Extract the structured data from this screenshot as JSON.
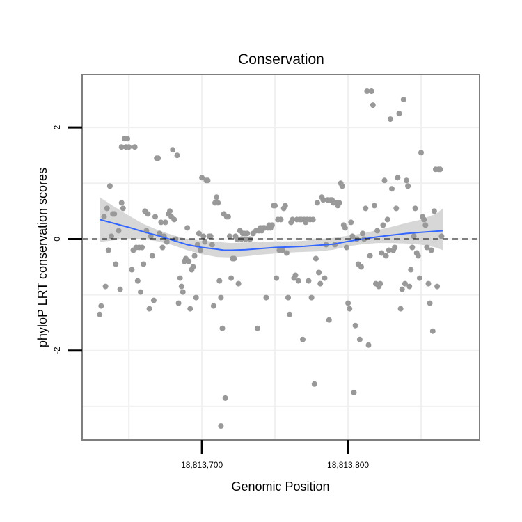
{
  "chart_data": {
    "type": "scatter",
    "title": "Conservation",
    "xlabel": "Genomic Position",
    "ylabel": "phyloP LRT conservation scores",
    "x_ticks": [
      {
        "value": 18813700,
        "label": "18,813,700"
      },
      {
        "value": 18813800,
        "label": "18,813,800"
      }
    ],
    "y_ticks": [
      {
        "value": -2,
        "label": "-2"
      },
      {
        "value": 0,
        "label": "0"
      },
      {
        "value": 2,
        "label": "2"
      }
    ],
    "xlim": [
      18813618,
      18813890
    ],
    "ylim": [
      -3.6,
      2.95
    ],
    "grid": true,
    "reference_line": {
      "y": 0,
      "style": "dashed",
      "color": "#000000"
    },
    "colors": {
      "points": "#999999",
      "smooth_line": "#3366FF",
      "ribbon": "#D3D3D3",
      "panel_border": "#7F7F7F",
      "grid": "#F0F0F0"
    },
    "points": [
      [
        18813630,
        -1.35
      ],
      [
        18813631,
        -1.2
      ],
      [
        18813633,
        0.4
      ],
      [
        18813634,
        -0.85
      ],
      [
        18813635,
        0.55
      ],
      [
        18813636,
        -0.2
      ],
      [
        18813637,
        0.95
      ],
      [
        18813638,
        0.05
      ],
      [
        18813639,
        0.45
      ],
      [
        18813640,
        0.45
      ],
      [
        18813641,
        -0.45
      ],
      [
        18813643,
        0.15
      ],
      [
        18813644,
        -0.9
      ],
      [
        18813645,
        0.65
      ],
      [
        18813645,
        1.65
      ],
      [
        18813646,
        0.55
      ],
      [
        18813647,
        1.8
      ],
      [
        18813648,
        1.65
      ],
      [
        18813649,
        1.8
      ],
      [
        18813650,
        1.65
      ],
      [
        18813652,
        -0.55
      ],
      [
        18813653,
        -0.2
      ],
      [
        18813654,
        1.65
      ],
      [
        18813655,
        -0.15
      ],
      [
        18813656,
        -0.75
      ],
      [
        18813657,
        -0.15
      ],
      [
        18813658,
        -0.95
      ],
      [
        18813659,
        -0.15
      ],
      [
        18813660,
        -0.45
      ],
      [
        18813661,
        0.5
      ],
      [
        18813662,
        0.15
      ],
      [
        18813663,
        0.45
      ],
      [
        18813664,
        -1.25
      ],
      [
        18813665,
        0.05
      ],
      [
        18813666,
        -0.3
      ],
      [
        18813667,
        -1.1
      ],
      [
        18813668,
        0.4
      ],
      [
        18813669,
        1.45
      ],
      [
        18813670,
        1.45
      ],
      [
        18813671,
        0.1
      ],
      [
        18813672,
        0.3
      ],
      [
        18813673,
        -0.15
      ],
      [
        18813674,
        0.05
      ],
      [
        18813675,
        0.3
      ],
      [
        18813676,
        -0.05
      ],
      [
        18813677,
        0.45
      ],
      [
        18813678,
        0.5
      ],
      [
        18813679,
        0.4
      ],
      [
        18813680,
        1.6
      ],
      [
        18813681,
        0.35
      ],
      [
        18813682,
        0.0
      ],
      [
        18813683,
        1.5
      ],
      [
        18813684,
        -1.15
      ],
      [
        18813685,
        -0.7
      ],
      [
        18813686,
        -0.85
      ],
      [
        18813687,
        -0.95
      ],
      [
        18813688,
        -0.4
      ],
      [
        18813689,
        -0.35
      ],
      [
        18813690,
        0.2
      ],
      [
        18813691,
        -0.4
      ],
      [
        18813692,
        -1.25
      ],
      [
        18813693,
        -0.55
      ],
      [
        18813694,
        -0.5
      ],
      [
        18813695,
        -0.3
      ],
      [
        18813696,
        -1.05
      ],
      [
        18813697,
        -0.1
      ],
      [
        18813698,
        0.1
      ],
      [
        18813699,
        -0.2
      ],
      [
        18813700,
        1.1
      ],
      [
        18813701,
        0.05
      ],
      [
        18813702,
        -0.05
      ],
      [
        18813703,
        1.05
      ],
      [
        18813704,
        1.05
      ],
      [
        18813705,
        0.05
      ],
      [
        18813706,
        0.05
      ],
      [
        18813707,
        -0.1
      ],
      [
        18813708,
        -1.2
      ],
      [
        18813709,
        0.65
      ],
      [
        18813710,
        0.75
      ],
      [
        18813711,
        0.65
      ],
      [
        18813712,
        -0.75
      ],
      [
        18813713,
        -1.05
      ],
      [
        18813714,
        -1.6
      ],
      [
        18813715,
        0.45
      ],
      [
        18813716,
        -2.85
      ],
      [
        18813717,
        0.4
      ],
      [
        18813718,
        0.4
      ],
      [
        18813719,
        0.05
      ],
      [
        18813720,
        -0.7
      ],
      [
        18813721,
        -0.35
      ],
      [
        18813722,
        -0.35
      ],
      [
        18813723,
        0.05
      ],
      [
        18813724,
        0.0
      ],
      [
        18813725,
        -0.8
      ],
      [
        18813726,
        0.15
      ],
      [
        18813727,
        0.0
      ],
      [
        18813728,
        0.1
      ],
      [
        18813729,
        0.1
      ],
      [
        18813713,
        -3.35
      ],
      [
        18813730,
        0.0
      ],
      [
        18813731,
        0.1
      ],
      [
        18813733,
        0.0
      ],
      [
        18813735,
        0.1
      ],
      [
        18813737,
        0.15
      ],
      [
        18813738,
        -1.6
      ],
      [
        18813739,
        0.15
      ],
      [
        18813740,
        0.2
      ],
      [
        18813741,
        0.15
      ],
      [
        18813742,
        0.2
      ],
      [
        18813743,
        0.2
      ],
      [
        18813744,
        -1.05
      ],
      [
        18813745,
        0.2
      ],
      [
        18813746,
        0.25
      ],
      [
        18813747,
        0.2
      ],
      [
        18813748,
        0.25
      ],
      [
        18813749,
        0.6
      ],
      [
        18813750,
        0.6
      ],
      [
        18813751,
        -0.7
      ],
      [
        18813752,
        0.35
      ],
      [
        18813753,
        -0.2
      ],
      [
        18813754,
        0.35
      ],
      [
        18813755,
        -0.2
      ],
      [
        18813756,
        0.55
      ],
      [
        18813757,
        0.6
      ],
      [
        18813758,
        -0.25
      ],
      [
        18813759,
        -1.05
      ],
      [
        18813760,
        -1.35
      ],
      [
        18813761,
        0.3
      ],
      [
        18813762,
        0.35
      ],
      [
        18813763,
        -0.7
      ],
      [
        18813764,
        -0.65
      ],
      [
        18813765,
        0.35
      ],
      [
        18813766,
        -0.75
      ],
      [
        18813767,
        0.35
      ],
      [
        18813768,
        0.35
      ],
      [
        18813769,
        -1.8
      ],
      [
        18813770,
        0.35
      ],
      [
        18813771,
        0.3
      ],
      [
        18813772,
        0.35
      ],
      [
        18813773,
        -0.75
      ],
      [
        18813774,
        0.35
      ],
      [
        18813775,
        -1.05
      ],
      [
        18813776,
        0.35
      ],
      [
        18813777,
        -2.6
      ],
      [
        18813778,
        -0.35
      ],
      [
        18813779,
        0.65
      ],
      [
        18813780,
        -0.6
      ],
      [
        18813781,
        -0.8
      ],
      [
        18813782,
        0.75
      ],
      [
        18813783,
        0.7
      ],
      [
        18813784,
        -0.7
      ],
      [
        18813785,
        -0.1
      ],
      [
        18813786,
        0.7
      ],
      [
        18813787,
        -1.45
      ],
      [
        18813788,
        0.7
      ],
      [
        18813789,
        0.7
      ],
      [
        18813790,
        0.65
      ],
      [
        18813791,
        -0.1
      ],
      [
        18813792,
        0.65
      ],
      [
        18813793,
        0.6
      ],
      [
        18813794,
        0.65
      ],
      [
        18813795,
        1.0
      ],
      [
        18813796,
        0.95
      ],
      [
        18813797,
        0.25
      ],
      [
        18813798,
        0.2
      ],
      [
        18813799,
        -0.15
      ],
      [
        18813800,
        -1.15
      ],
      [
        18813801,
        -1.25
      ],
      [
        18813802,
        0.3
      ],
      [
        18813803,
        0.05
      ],
      [
        18813804,
        -2.75
      ],
      [
        18813805,
        -1.55
      ],
      [
        18813806,
        0.0
      ],
      [
        18813807,
        -0.45
      ],
      [
        18813808,
        -1.8
      ],
      [
        18813809,
        -0.5
      ],
      [
        18813810,
        0.1
      ],
      [
        18813811,
        0.0
      ],
      [
        18813812,
        0.55
      ],
      [
        18813813,
        2.65
      ],
      [
        18813814,
        -1.9
      ],
      [
        18813815,
        -0.3
      ],
      [
        18813816,
        2.65
      ],
      [
        18813817,
        2.4
      ],
      [
        18813818,
        0.6
      ],
      [
        18813819,
        -0.8
      ],
      [
        18813820,
        0.15
      ],
      [
        18813821,
        -0.85
      ],
      [
        18813822,
        -0.8
      ],
      [
        18813823,
        -0.25
      ],
      [
        18813824,
        0.25
      ],
      [
        18813825,
        1.05
      ],
      [
        18813826,
        -0.3
      ],
      [
        18813827,
        0.35
      ],
      [
        18813828,
        -0.2
      ],
      [
        18813829,
        2.15
      ],
      [
        18813830,
        0.9
      ],
      [
        18813831,
        -0.2
      ],
      [
        18813832,
        -0.15
      ],
      [
        18813833,
        0.55
      ],
      [
        18813834,
        1.1
      ],
      [
        18813835,
        2.25
      ],
      [
        18813836,
        -1.25
      ],
      [
        18813837,
        -0.9
      ],
      [
        18813838,
        2.5
      ],
      [
        18813839,
        -0.8
      ],
      [
        18813840,
        1.05
      ],
      [
        18813841,
        0.95
      ],
      [
        18813842,
        -0.85
      ],
      [
        18813843,
        -0.55
      ],
      [
        18813844,
        -0.15
      ],
      [
        18813845,
        0.05
      ],
      [
        18813846,
        0.55
      ],
      [
        18813847,
        -0.25
      ],
      [
        18813848,
        -0.3
      ],
      [
        18813849,
        -0.7
      ],
      [
        18813850,
        1.55
      ],
      [
        18813851,
        0.4
      ],
      [
        18813852,
        0.35
      ],
      [
        18813853,
        0.25
      ],
      [
        18813854,
        -0.15
      ],
      [
        18813855,
        -0.8
      ],
      [
        18813856,
        -1.15
      ],
      [
        18813857,
        -0.2
      ],
      [
        18813858,
        -1.65
      ],
      [
        18813859,
        0.5
      ],
      [
        18813860,
        1.25
      ],
      [
        18813861,
        -0.85
      ],
      [
        18813862,
        1.25
      ],
      [
        18813863,
        1.25
      ],
      [
        18813864,
        0.05
      ]
    ],
    "smooth_line": [
      [
        18813630,
        0.35
      ],
      [
        18813640,
        0.28
      ],
      [
        18813650,
        0.21
      ],
      [
        18813660,
        0.13
      ],
      [
        18813670,
        0.06
      ],
      [
        18813680,
        -0.02
      ],
      [
        18813690,
        -0.1
      ],
      [
        18813700,
        -0.15
      ],
      [
        18813710,
        -0.18
      ],
      [
        18813715,
        -0.2
      ],
      [
        18813720,
        -0.2
      ],
      [
        18813730,
        -0.19
      ],
      [
        18813740,
        -0.17
      ],
      [
        18813750,
        -0.15
      ],
      [
        18813760,
        -0.14
      ],
      [
        18813770,
        -0.13
      ],
      [
        18813780,
        -0.11
      ],
      [
        18813790,
        -0.09
      ],
      [
        18813800,
        -0.04
      ],
      [
        18813810,
        0.0
      ],
      [
        18813820,
        0.04
      ],
      [
        18813830,
        0.07
      ],
      [
        18813840,
        0.1
      ],
      [
        18813850,
        0.12
      ],
      [
        18813860,
        0.14
      ],
      [
        18813865,
        0.15
      ]
    ],
    "ribbon": [
      [
        18813630,
        -0.05,
        0.75
      ],
      [
        18813640,
        -0.02,
        0.58
      ],
      [
        18813650,
        0.01,
        0.42
      ],
      [
        18813660,
        0.0,
        0.27
      ],
      [
        18813670,
        -0.04,
        0.16
      ],
      [
        18813680,
        -0.11,
        0.07
      ],
      [
        18813690,
        -0.2,
        0.0
      ],
      [
        18813700,
        -0.27,
        -0.03
      ],
      [
        18813710,
        -0.32,
        -0.05
      ],
      [
        18813720,
        -0.33,
        -0.07
      ],
      [
        18813730,
        -0.31,
        -0.06
      ],
      [
        18813740,
        -0.28,
        -0.05
      ],
      [
        18813750,
        -0.26,
        -0.04
      ],
      [
        18813760,
        -0.24,
        -0.04
      ],
      [
        18813770,
        -0.23,
        -0.03
      ],
      [
        18813780,
        -0.22,
        0.0
      ],
      [
        18813790,
        -0.19,
        0.02
      ],
      [
        18813800,
        -0.13,
        0.06
      ],
      [
        18813810,
        -0.09,
        0.1
      ],
      [
        18813820,
        -0.07,
        0.16
      ],
      [
        18813830,
        -0.07,
        0.22
      ],
      [
        18813840,
        -0.08,
        0.29
      ],
      [
        18813850,
        -0.1,
        0.35
      ],
      [
        18813860,
        -0.15,
        0.45
      ],
      [
        18813865,
        -0.2,
        0.55
      ]
    ]
  }
}
